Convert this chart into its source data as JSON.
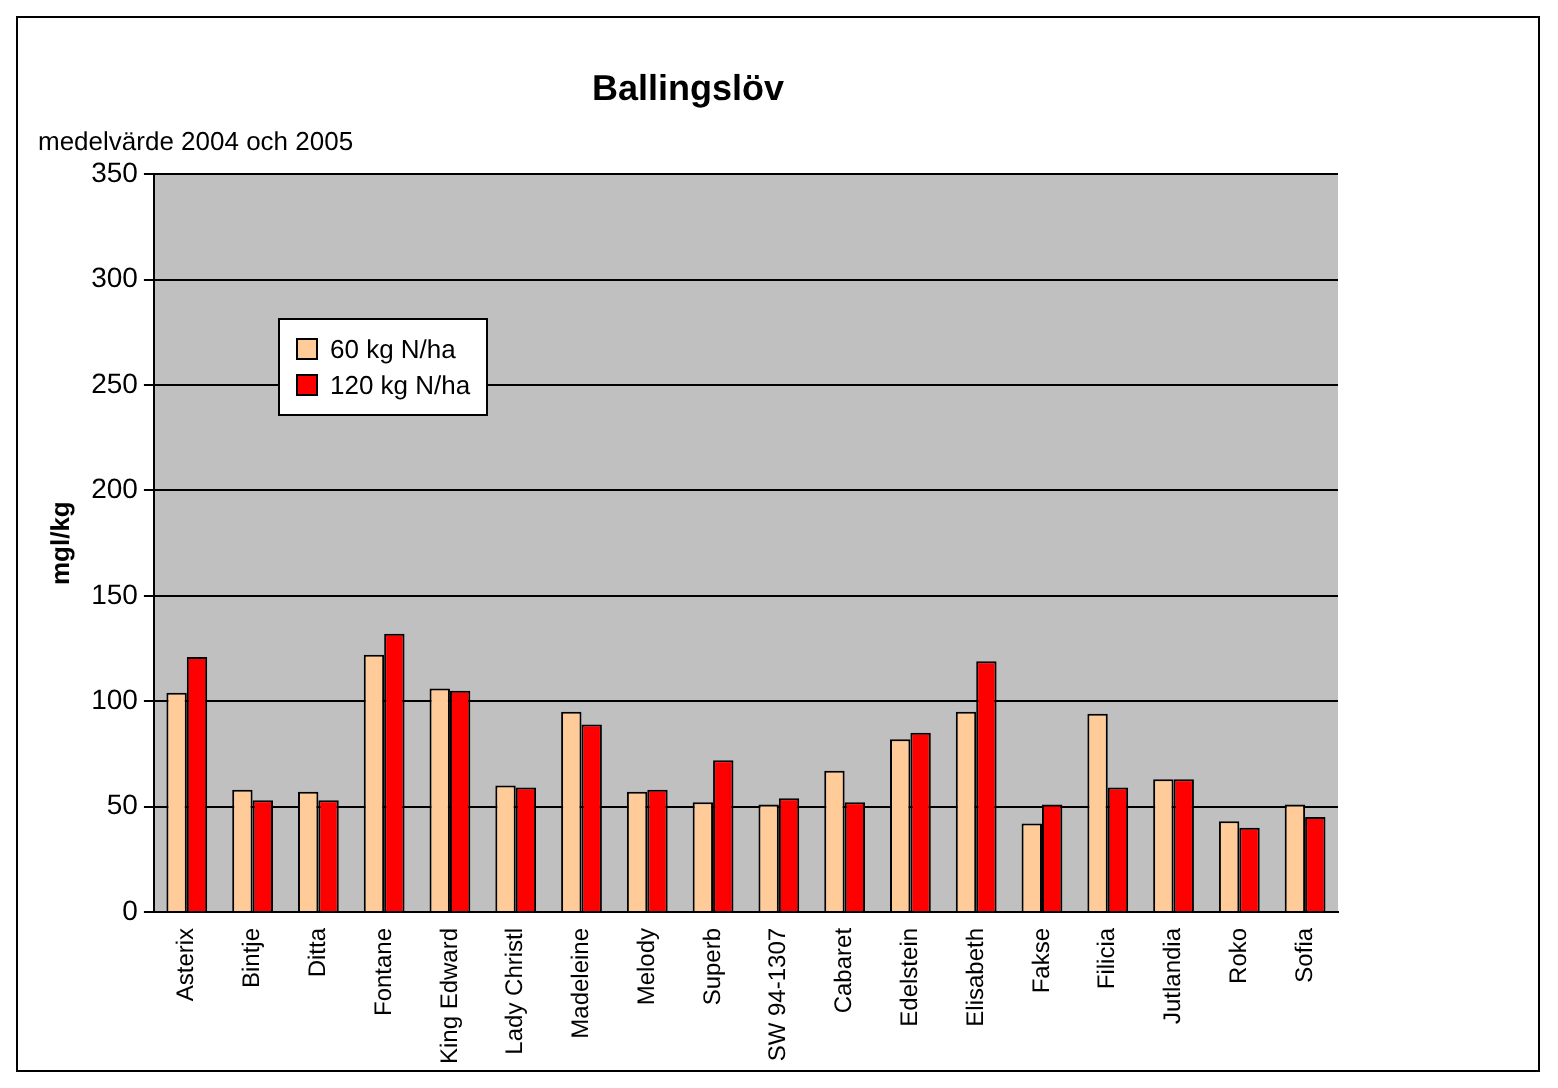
{
  "chart_data": {
    "type": "bar",
    "title": "Ballingslöv",
    "subtitle": "medelvärde 2004 och 2005",
    "ylabel": "mgl/kg",
    "categories": [
      "Asterix",
      "Bintje",
      "Ditta",
      "Fontane",
      "King Edward",
      "Lady Christl",
      "Madeleine",
      "Melody",
      "Superb",
      "SW 94-1307",
      "Cabaret",
      "Edelstein",
      "Elisabeth",
      "Fakse",
      "Filicia",
      "Jutlandia",
      "Roko",
      "Sofia"
    ],
    "series": [
      {
        "name": "60 kg N/ha",
        "color": "#ffcc99",
        "values": [
          104,
          58,
          57,
          122,
          106,
          60,
          95,
          57,
          52,
          51,
          67,
          82,
          95,
          42,
          94,
          63,
          43,
          51
        ]
      },
      {
        "name": "120 kg N/ha",
        "color": "#ff0000",
        "values": [
          121,
          53,
          53,
          132,
          105,
          59,
          89,
          58,
          72,
          54,
          52,
          85,
          119,
          51,
          59,
          63,
          40,
          45
        ]
      }
    ],
    "ylim": [
      0,
      350
    ],
    "yticks": [
      0,
      50,
      100,
      150,
      200,
      250,
      300,
      350
    ],
    "grid": "y",
    "legend": "top left"
  }
}
